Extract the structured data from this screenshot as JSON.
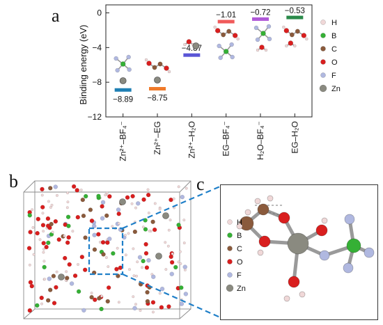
{
  "panel_labels": {
    "a": "a",
    "b": "b",
    "c": "c"
  },
  "chart_data": {
    "type": "bar",
    "ylabel": "Binding energy (eV)",
    "ylim": [
      -12,
      1.2
    ],
    "yticks": [
      "0",
      "−4",
      "−8",
      "−12"
    ],
    "categories": [
      "Zn²⁺–BF₄⁻",
      "Zn²⁺–EG",
      "Zn²⁺–H₂O",
      "EG–BF₄⁻",
      "H₂O–BF₄⁻",
      "EG–H₂O"
    ],
    "values": [
      -8.89,
      -8.75,
      -4.87,
      -1.01,
      -0.72,
      -0.53
    ],
    "value_labels": [
      "−8.89",
      "−8.75",
      "−4.87",
      "−1.01",
      "−0.72",
      "−0.53"
    ],
    "colors": [
      "#1f7fb4",
      "#f07a2a",
      "#5a55d6",
      "#f05a5a",
      "#b05ad8",
      "#2a8a4a"
    ]
  },
  "legend_a": [
    {
      "label": "H",
      "color": "#f0d8d8"
    },
    {
      "label": "B",
      "color": "#35b035"
    },
    {
      "label": "C",
      "color": "#8a5a3c"
    },
    {
      "label": "O",
      "color": "#d91e1e"
    },
    {
      "label": "F",
      "color": "#b0b8e0"
    },
    {
      "label": "Zn",
      "color": "#8a8a80"
    }
  ],
  "legend_c": [
    {
      "label": "H",
      "color": "#f0d8d8"
    },
    {
      "label": "B",
      "color": "#35b035"
    },
    {
      "label": "C",
      "color": "#8a5a3c"
    },
    {
      "label": "O",
      "color": "#d91e1e"
    },
    {
      "label": "F",
      "color": "#b0b8e0"
    },
    {
      "label": "Zn",
      "color": "#8a8a80"
    }
  ]
}
